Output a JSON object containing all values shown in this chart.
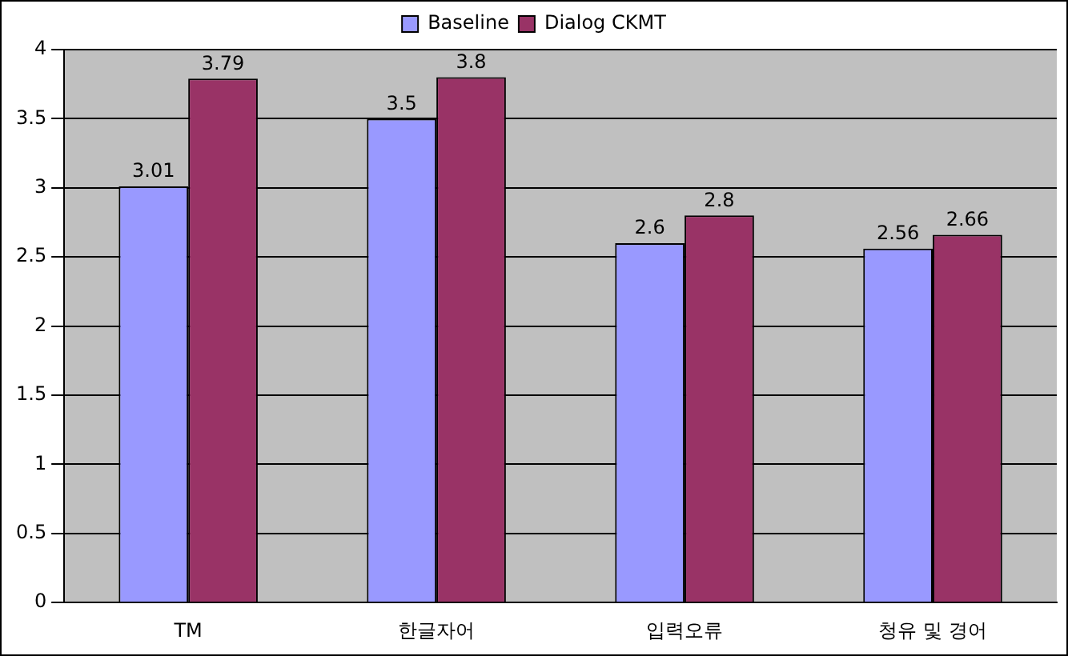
{
  "chart_data": {
    "type": "bar",
    "categories": [
      "TM",
      "한글자어",
      "입력오류",
      "청유 및 경어"
    ],
    "series": [
      {
        "name": "Baseline",
        "color": "#9999ff",
        "values": [
          3.01,
          3.5,
          2.6,
          2.56
        ]
      },
      {
        "name": "Dialog CKMT",
        "color": "#993366",
        "values": [
          3.79,
          3.8,
          2.8,
          2.66
        ]
      }
    ],
    "ylim": [
      0,
      4
    ],
    "yticks": [
      0,
      0.5,
      1,
      1.5,
      2,
      2.5,
      3,
      3.5,
      4
    ],
    "grid": "y",
    "legend": "top",
    "data_labels": true
  }
}
